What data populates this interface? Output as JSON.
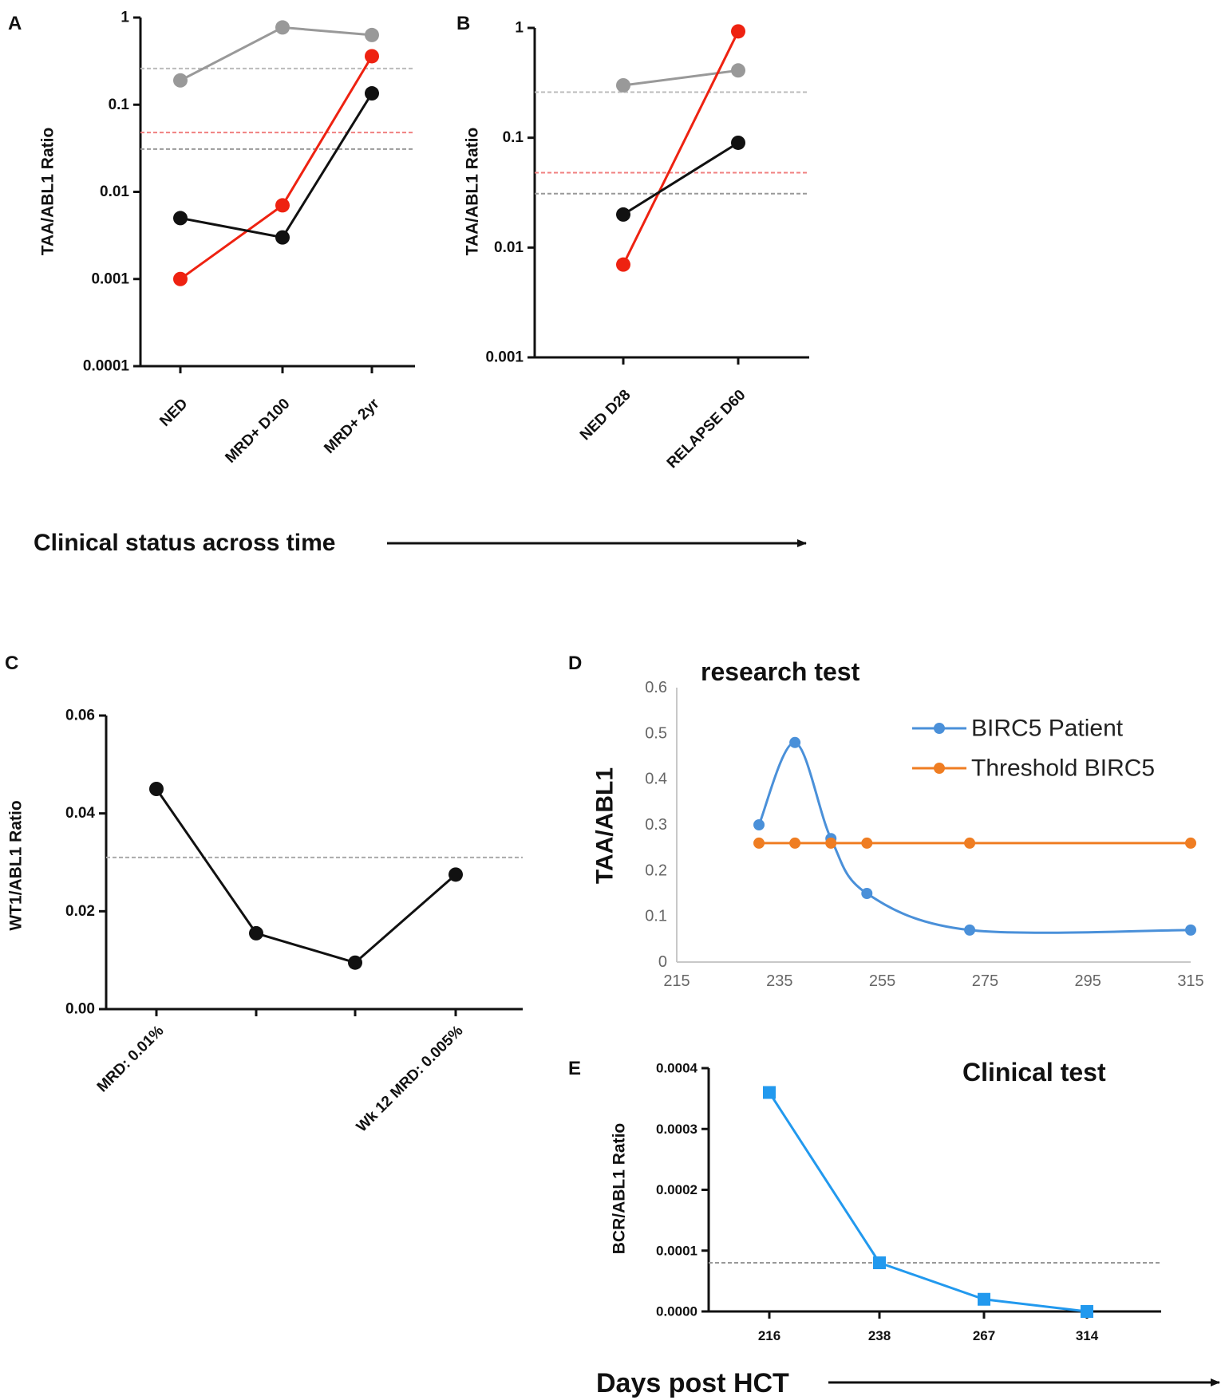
{
  "chart_data": [
    {
      "id": "A",
      "panel_label": "A",
      "type": "line",
      "yscale": "log",
      "ylabel": "TAA/ABL1 Ratio",
      "ylim": [
        0.0001,
        1
      ],
      "yticks": [
        1,
        0.1,
        0.01,
        0.001,
        0.0001
      ],
      "ytick_labels": [
        "1",
        "0.1",
        "0.01",
        "0.001",
        "0.0001"
      ],
      "categories": [
        "NED",
        "MRD+ D100",
        "MRD+ 2yr"
      ],
      "series": [
        {
          "name": "gray",
          "color": "#999999",
          "values": [
            0.19,
            0.77,
            0.63
          ]
        },
        {
          "name": "red",
          "color": "#ee2211",
          "values": [
            0.001,
            0.007,
            0.36
          ]
        },
        {
          "name": "black",
          "color": "#111111",
          "values": [
            0.005,
            0.003,
            0.135
          ]
        }
      ],
      "thresholds": [
        {
          "value": 0.26,
          "color": "#bbbbbb"
        },
        {
          "value": 0.048,
          "color": "#f08080"
        },
        {
          "value": 0.031,
          "color": "#999999"
        }
      ]
    },
    {
      "id": "B",
      "panel_label": "B",
      "type": "line",
      "yscale": "log",
      "ylabel": "TAA/ABL1 Ratio",
      "ylim": [
        0.001,
        1
      ],
      "yticks": [
        1,
        0.1,
        0.01,
        0.001
      ],
      "ytick_labels": [
        "1",
        "0.1",
        "0.01",
        "0.001"
      ],
      "categories": [
        "NED D28",
        "RELAPSE D60"
      ],
      "series": [
        {
          "name": "gray",
          "color": "#999999",
          "values": [
            0.3,
            0.41
          ]
        },
        {
          "name": "red",
          "color": "#ee2211",
          "values": [
            0.007,
            0.93
          ]
        },
        {
          "name": "black",
          "color": "#111111",
          "values": [
            0.02,
            0.09
          ]
        }
      ],
      "thresholds": [
        {
          "value": 0.26,
          "color": "#bbbbbb"
        },
        {
          "value": 0.048,
          "color": "#f08080"
        },
        {
          "value": 0.031,
          "color": "#999999"
        }
      ]
    },
    {
      "id": "C",
      "panel_label": "C",
      "type": "line",
      "yscale": "linear",
      "ylabel": "WT1/ABL1 Ratio",
      "ylim": [
        0,
        0.06
      ],
      "yticks": [
        0,
        0.02,
        0.04,
        0.06
      ],
      "ytick_labels": [
        "0.00",
        "0.02",
        "0.04",
        "0.06"
      ],
      "categories": [
        "MRD: 0.01%",
        "",
        "",
        "Wk 12 MRD: 0.005%"
      ],
      "series": [
        {
          "name": "WT1",
          "color": "#111111",
          "values": [
            0.045,
            0.0155,
            0.0095,
            0.0275
          ]
        }
      ],
      "thresholds": [
        {
          "value": 0.031,
          "color": "#aaaaaa"
        }
      ]
    },
    {
      "id": "D",
      "panel_label": "D",
      "type": "line",
      "title": "research test",
      "ylabel": "TAA/ABL1",
      "xlim": [
        215,
        315
      ],
      "ylim": [
        0,
        0.6
      ],
      "xticks": [
        215,
        235,
        255,
        275,
        295,
        315
      ],
      "yticks": [
        0,
        0.1,
        0.2,
        0.3,
        0.4,
        0.5,
        0.6
      ],
      "ytick_labels": [
        "0",
        "0.1",
        "0.2",
        "0.3",
        "0.4",
        "0.5",
        "0.6"
      ],
      "legend": [
        "BIRC5 Patient",
        "Threshold BIRC5"
      ],
      "legend_position": "top-right",
      "series": [
        {
          "name": "BIRC5 Patient",
          "color": "#4a90d9",
          "x": [
            231,
            238,
            245,
            252,
            272,
            315
          ],
          "values": [
            0.3,
            0.48,
            0.27,
            0.15,
            0.07,
            0.07
          ]
        },
        {
          "name": "Threshold BIRC5",
          "color": "#ef7d22",
          "x": [
            231,
            238,
            245,
            252,
            272,
            315
          ],
          "values": [
            0.26,
            0.26,
            0.26,
            0.26,
            0.26,
            0.26
          ]
        }
      ]
    },
    {
      "id": "E",
      "panel_label": "E",
      "type": "line",
      "title": "Clinical test",
      "ylabel": "BCR/ABL1 Ratio",
      "ylim": [
        0,
        0.0004
      ],
      "yticks": [
        0,
        0.0001,
        0.0002,
        0.0003,
        0.0004
      ],
      "ytick_labels": [
        "0.0000",
        "0.0001",
        "0.0002",
        "0.0003",
        "0.0004"
      ],
      "categories": [
        "216",
        "238",
        "267",
        "314"
      ],
      "series": [
        {
          "name": "BCR/ABL1",
          "color": "#2299ee",
          "values": [
            0.00036,
            8e-05,
            2e-05,
            0.0
          ]
        }
      ],
      "thresholds": [
        {
          "value": 8e-05,
          "color": "#999999"
        }
      ]
    }
  ],
  "annotations": {
    "clinical_status": "Clinical status across time",
    "days_post": "Days post HCT"
  }
}
